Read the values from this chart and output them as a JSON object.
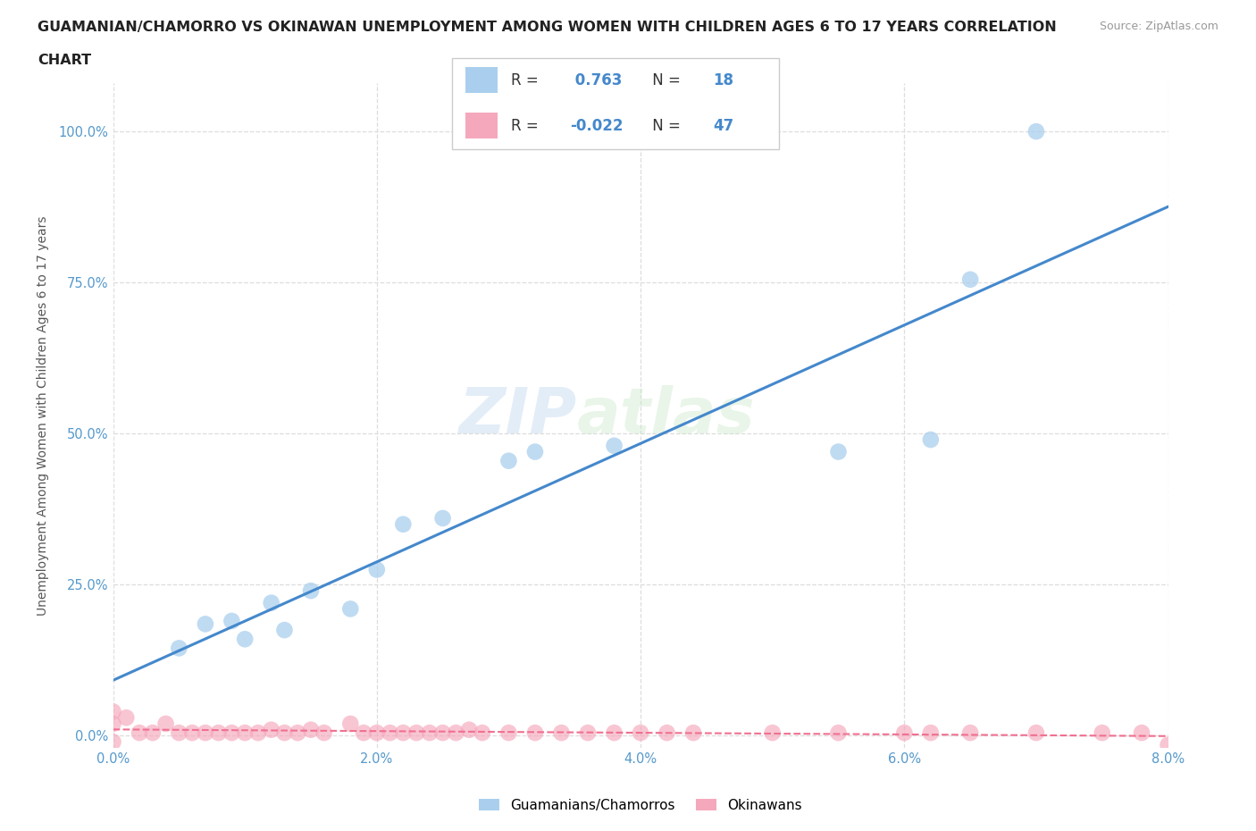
{
  "title_line1": "GUAMANIAN/CHAMORRO VS OKINAWAN UNEMPLOYMENT AMONG WOMEN WITH CHILDREN AGES 6 TO 17 YEARS CORRELATION",
  "title_line2": "CHART",
  "source": "Source: ZipAtlas.com",
  "ylabel": "Unemployment Among Women with Children Ages 6 to 17 years",
  "xlim": [
    0,
    0.08
  ],
  "ylim": [
    -0.02,
    1.08
  ],
  "blue_R": 0.763,
  "blue_N": 18,
  "pink_R": -0.022,
  "pink_N": 47,
  "blue_color": "#aacfee",
  "pink_color": "#f5a8bc",
  "blue_line_color": "#4488cc",
  "pink_line_color": "#f07090",
  "watermark_zip": "ZIP",
  "watermark_atlas": "atlas",
  "legend_labels": [
    "Guamanians/Chamorros",
    "Okinawans"
  ],
  "blue_scatter_x": [
    0.005,
    0.007,
    0.009,
    0.01,
    0.012,
    0.013,
    0.015,
    0.018,
    0.02,
    0.022,
    0.025,
    0.03,
    0.032,
    0.038,
    0.055,
    0.062,
    0.065,
    0.07
  ],
  "blue_scatter_y": [
    0.145,
    0.185,
    0.19,
    0.16,
    0.22,
    0.175,
    0.24,
    0.21,
    0.275,
    0.35,
    0.36,
    0.455,
    0.47,
    0.48,
    0.47,
    0.49,
    0.755,
    1.0
  ],
  "pink_scatter_x": [
    0.0,
    0.003,
    0.005,
    0.006,
    0.007,
    0.008,
    0.009,
    0.01,
    0.011,
    0.012,
    0.013,
    0.014,
    0.015,
    0.016,
    0.018,
    0.019,
    0.02,
    0.021,
    0.022,
    0.023,
    0.024,
    0.025,
    0.026,
    0.027,
    0.028,
    0.03,
    0.032,
    0.034,
    0.036,
    0.038,
    0.04,
    0.042,
    0.044,
    0.05,
    0.055,
    0.06,
    0.062,
    0.065,
    0.07,
    0.075,
    0.078,
    0.08,
    0.0,
    0.002,
    0.004,
    0.0,
    0.001
  ],
  "pink_scatter_y": [
    0.02,
    0.005,
    0.005,
    0.005,
    0.005,
    0.005,
    0.005,
    0.005,
    0.005,
    0.01,
    0.005,
    0.005,
    0.01,
    0.005,
    0.02,
    0.005,
    0.005,
    0.005,
    0.005,
    0.005,
    0.005,
    0.005,
    0.005,
    0.01,
    0.005,
    0.005,
    0.005,
    0.005,
    0.005,
    0.005,
    0.005,
    0.005,
    0.005,
    0.005,
    0.005,
    0.005,
    0.005,
    0.005,
    0.005,
    0.005,
    0.005,
    -0.015,
    0.04,
    0.005,
    0.02,
    -0.01,
    0.03
  ]
}
